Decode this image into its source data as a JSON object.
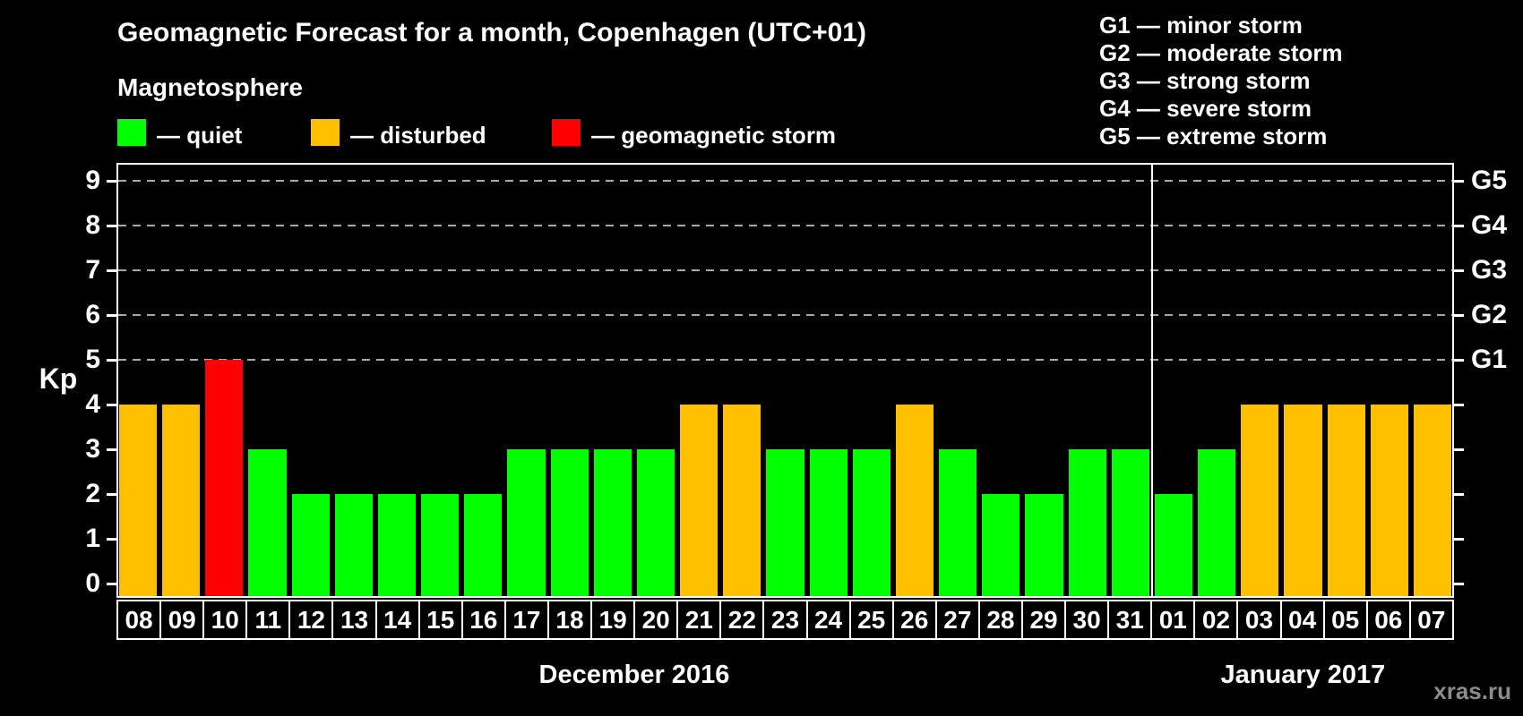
{
  "title": "Geomagnetic Forecast for a month, Copenhagen (UTC+01)",
  "subtitle": "Magnetosphere",
  "legend": {
    "items": [
      {
        "state": "quiet",
        "label": "— quiet",
        "color": "#00ff00"
      },
      {
        "state": "disturbed",
        "label": "— disturbed",
        "color": "#ffc000"
      },
      {
        "state": "storm",
        "label": "— geomagnetic storm",
        "color": "#ff0000"
      }
    ]
  },
  "storm_scale_legend": [
    "G1 — minor storm",
    "G2 — moderate storm",
    "G3 — strong storm",
    "G4 — severe storm",
    "G5 — extreme storm"
  ],
  "colors": {
    "background": "#000000",
    "axis": "#ffffff",
    "grid": "#a8a8a8",
    "text": "#ffffff",
    "watermark": "#8c8c8c"
  },
  "watermark": "xras.ru",
  "chart_data": {
    "type": "bar",
    "ylabel": "Kp",
    "ylim": [
      0,
      9.4
    ],
    "yticks": [
      0,
      1,
      2,
      3,
      4,
      5,
      6,
      7,
      8,
      9
    ],
    "gridlines": [
      5,
      6,
      7,
      8,
      9
    ],
    "grid_style": "dashed",
    "right_axis_labels": [
      {
        "value": 5,
        "label": "G1"
      },
      {
        "value": 6,
        "label": "G2"
      },
      {
        "value": 7,
        "label": "G3"
      },
      {
        "value": 8,
        "label": "G4"
      },
      {
        "value": 9,
        "label": "G5"
      }
    ],
    "groups": [
      {
        "label": "December 2016",
        "days": [
          {
            "day": "08",
            "kp": 4,
            "state": "disturbed"
          },
          {
            "day": "09",
            "kp": 4,
            "state": "disturbed"
          },
          {
            "day": "10",
            "kp": 5,
            "state": "storm"
          },
          {
            "day": "11",
            "kp": 3,
            "state": "quiet"
          },
          {
            "day": "12",
            "kp": 2,
            "state": "quiet"
          },
          {
            "day": "13",
            "kp": 2,
            "state": "quiet"
          },
          {
            "day": "14",
            "kp": 2,
            "state": "quiet"
          },
          {
            "day": "15",
            "kp": 2,
            "state": "quiet"
          },
          {
            "day": "16",
            "kp": 2,
            "state": "quiet"
          },
          {
            "day": "17",
            "kp": 3,
            "state": "quiet"
          },
          {
            "day": "18",
            "kp": 3,
            "state": "quiet"
          },
          {
            "day": "19",
            "kp": 3,
            "state": "quiet"
          },
          {
            "day": "20",
            "kp": 3,
            "state": "quiet"
          },
          {
            "day": "21",
            "kp": 4,
            "state": "disturbed"
          },
          {
            "day": "22",
            "kp": 4,
            "state": "disturbed"
          },
          {
            "day": "23",
            "kp": 3,
            "state": "quiet"
          },
          {
            "day": "24",
            "kp": 3,
            "state": "quiet"
          },
          {
            "day": "25",
            "kp": 3,
            "state": "quiet"
          },
          {
            "day": "26",
            "kp": 4,
            "state": "disturbed"
          },
          {
            "day": "27",
            "kp": 3,
            "state": "quiet"
          },
          {
            "day": "28",
            "kp": 2,
            "state": "quiet"
          },
          {
            "day": "29",
            "kp": 2,
            "state": "quiet"
          },
          {
            "day": "30",
            "kp": 3,
            "state": "quiet"
          },
          {
            "day": "31",
            "kp": 3,
            "state": "quiet"
          }
        ]
      },
      {
        "label": "January 2017",
        "days": [
          {
            "day": "01",
            "kp": 2,
            "state": "quiet"
          },
          {
            "day": "02",
            "kp": 3,
            "state": "quiet"
          },
          {
            "day": "03",
            "kp": 4,
            "state": "disturbed"
          },
          {
            "day": "04",
            "kp": 4,
            "state": "disturbed"
          },
          {
            "day": "05",
            "kp": 4,
            "state": "disturbed"
          },
          {
            "day": "06",
            "kp": 4,
            "state": "disturbed"
          },
          {
            "day": "07",
            "kp": 4,
            "state": "disturbed"
          }
        ]
      }
    ]
  }
}
